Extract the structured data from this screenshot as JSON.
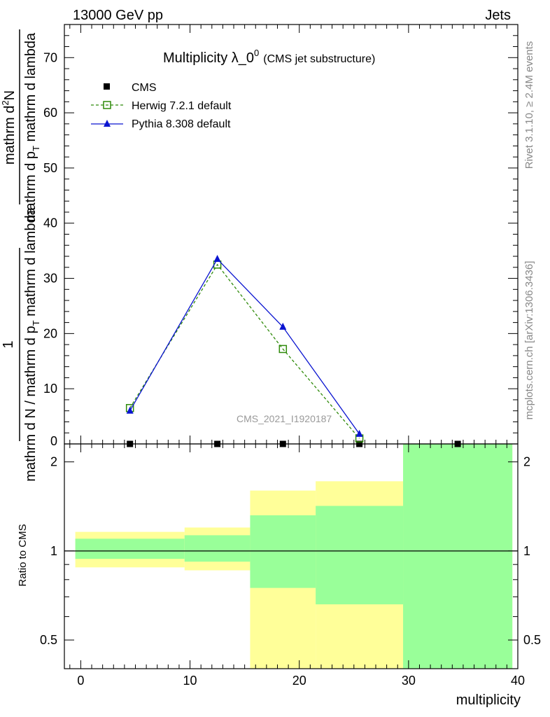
{
  "header": {
    "left": "13000 GeV pp",
    "right": "Jets"
  },
  "side": {
    "rivet": "Rivet 3.1.10, ≥ 2.4M events",
    "mcplots": "mcplots.cern.ch [arXiv:1306.3436]"
  },
  "chart_data": {
    "type": "line",
    "title": "Multiplicity λ_0",
    "title_superscript": "0",
    "subtitle": "(CMS jet substructure)",
    "watermark": "CMS_2021_I1920187",
    "xlabel": "multiplicity",
    "ylabel": {
      "numerator": "1",
      "denominator_prefix": "mathrm d N / mathrm d p",
      "denominator_sub": "T",
      "denominator_suffix": " mathrm d lambda",
      "fraction_numerator": "mathrm d",
      "fraction_numerator_sup": "2",
      "fraction_numerator_rest": "N",
      "fraction_denominator_prefix": "mathrm d p",
      "fraction_denominator_sub": "T",
      "fraction_denominator_suffix": " mathrm d lambda"
    },
    "ratio_ylabel": "Ratio to CMS",
    "xlim": [
      -1.5,
      40
    ],
    "ylim": [
      0,
      76
    ],
    "ratio_ylim": [
      0.4,
      2.3
    ],
    "x_ticks": [
      "0",
      "10",
      "20",
      "30",
      "40"
    ],
    "y_ticks": [
      "10",
      "20",
      "30",
      "40",
      "50",
      "60",
      "70"
    ],
    "y_tick_zero": "0",
    "ratio_ticks": [
      "0.5",
      "1",
      "2"
    ],
    "legend_position": "top-left",
    "series": [
      {
        "name": "CMS",
        "style": "marker",
        "color": "#000000",
        "points": [
          [
            4.5,
            0
          ],
          [
            12.5,
            0
          ],
          [
            18.5,
            0
          ],
          [
            25.5,
            0
          ],
          [
            34.5,
            0
          ]
        ]
      },
      {
        "name": "Herwig 7.2.1 default",
        "style": "dashed-open-square",
        "color": "#2f8a0a",
        "points": [
          [
            4.5,
            6.5
          ],
          [
            12.5,
            32.5
          ],
          [
            18.5,
            17.2
          ],
          [
            25.5,
            1.0
          ]
        ]
      },
      {
        "name": "Pythia 8.308 default",
        "style": "solid-triangle",
        "color": "#0a14d0",
        "points": [
          [
            4.5,
            6.0
          ],
          [
            12.5,
            33.5
          ],
          [
            18.5,
            21.2
          ],
          [
            25.5,
            1.8
          ]
        ]
      }
    ],
    "ratio_bands": [
      {
        "x0": -0.5,
        "x1": 9.5,
        "yellow": [
          0.88,
          1.16
        ],
        "green": [
          0.94,
          1.1
        ]
      },
      {
        "x0": 9.5,
        "x1": 15.5,
        "yellow": [
          0.86,
          1.2
        ],
        "green": [
          0.92,
          1.13
        ]
      },
      {
        "x0": 15.5,
        "x1": 21.5,
        "yellow": [
          0.38,
          1.6
        ],
        "green": [
          0.75,
          1.32
        ]
      },
      {
        "x0": 21.5,
        "x1": 29.5,
        "yellow": [
          0.38,
          1.72
        ],
        "green": [
          0.66,
          1.42
        ]
      },
      {
        "x0": 29.5,
        "x1": 39.5,
        "yellow": [
          0.36,
          2.3
        ],
        "green": [
          0.36,
          2.3
        ]
      }
    ],
    "colors": {
      "yellow_band": "#ffff99",
      "green_band": "#99ff99"
    }
  }
}
